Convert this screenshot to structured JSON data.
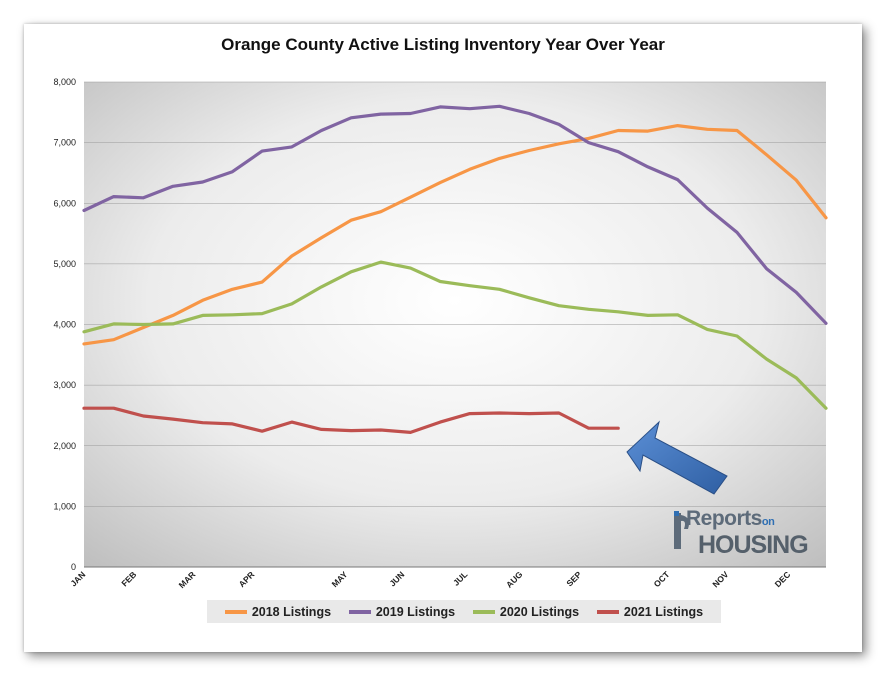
{
  "chart_data": {
    "type": "line",
    "title": "Orange County Active Listing Inventory Year Over Year",
    "x_ticks": [
      "JAN",
      "FEB",
      "MAR",
      "APR",
      "MAY",
      "JUN",
      "JUL",
      "AUG",
      "SEP",
      "OCT",
      "NOV",
      "DEC"
    ],
    "ylim": [
      0,
      8000
    ],
    "y_ticks": [
      "0",
      "1,000",
      "2,000",
      "3,000",
      "4,000",
      "5,000",
      "6,000",
      "7,000",
      "8,000"
    ],
    "grid": "horizontal",
    "legend_position": "bottom",
    "series": [
      {
        "name": "2018 Listings",
        "color": "#f79646",
        "values": [
          3680,
          3750,
          3950,
          4150,
          4400,
          4580,
          4700,
          5130,
          5430,
          5720,
          5860,
          6100,
          6340,
          6560,
          6740,
          6870,
          6980,
          7070,
          7200,
          7190,
          7280,
          7220,
          7200,
          6800,
          6380,
          5760
        ]
      },
      {
        "name": "2019 Listings",
        "color": "#8064a2",
        "values": [
          5880,
          6110,
          6090,
          6280,
          6350,
          6520,
          6860,
          6930,
          7200,
          7410,
          7470,
          7480,
          7590,
          7560,
          7600,
          7480,
          7300,
          7000,
          6850,
          6600,
          6390,
          5920,
          5520,
          4920,
          4530,
          4020
        ]
      },
      {
        "name": "2020 Listings",
        "color": "#9bbb59",
        "values": [
          3880,
          4010,
          4000,
          4010,
          4150,
          4160,
          4180,
          4340,
          4620,
          4870,
          5030,
          4930,
          4710,
          4640,
          4580,
          4440,
          4310,
          4250,
          4210,
          4150,
          4160,
          3920,
          3810,
          3430,
          3120,
          2620
        ]
      },
      {
        "name": "2021 Listings",
        "color": "#c0504d",
        "values": [
          2620,
          2620,
          2490,
          2440,
          2380,
          2360,
          2240,
          2390,
          2270,
          2250,
          2260,
          2220,
          2390,
          2530,
          2540,
          2530,
          2540,
          2290,
          2290
        ]
      }
    ]
  },
  "logo": {
    "line1": "Reports",
    "line1_small": "on",
    "line2": "HOUSING"
  }
}
